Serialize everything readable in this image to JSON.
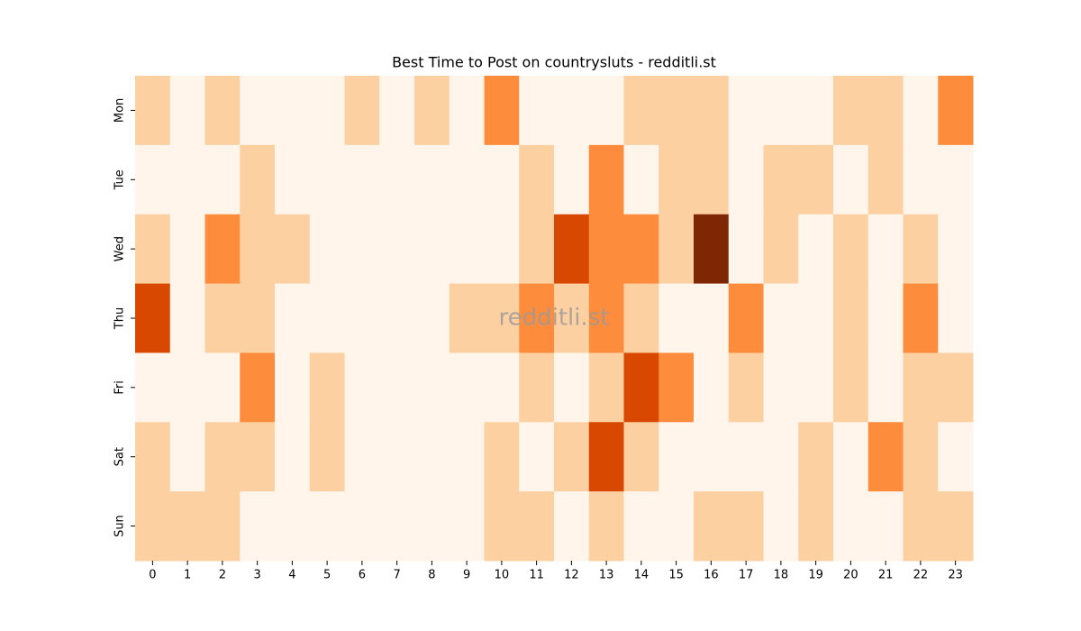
{
  "chart_data": {
    "type": "heatmap",
    "title": "Best Time to Post on countrysluts - redditli.st",
    "watermark": "redditli.st",
    "x": [
      0,
      1,
      2,
      3,
      4,
      5,
      6,
      7,
      8,
      9,
      10,
      11,
      12,
      13,
      14,
      15,
      16,
      17,
      18,
      19,
      20,
      21,
      22,
      23
    ],
    "y": [
      "Mon",
      "Tue",
      "Wed",
      "Thu",
      "Fri",
      "Sat",
      "Sun"
    ],
    "values": [
      [
        1,
        0,
        1,
        0,
        0,
        0,
        1,
        0,
        1,
        0,
        2,
        0,
        0,
        0,
        1,
        1,
        1,
        0,
        0,
        0,
        1,
        1,
        0,
        2
      ],
      [
        0,
        0,
        0,
        1,
        0,
        0,
        0,
        0,
        0,
        0,
        0,
        1,
        0,
        2,
        0,
        1,
        1,
        0,
        1,
        1,
        0,
        1,
        0,
        0
      ],
      [
        1,
        0,
        2,
        1,
        1,
        0,
        0,
        0,
        0,
        0,
        0,
        1,
        3,
        2,
        2,
        1,
        4,
        0,
        1,
        0,
        1,
        0,
        1,
        0
      ],
      [
        3,
        0,
        1,
        1,
        0,
        0,
        0,
        0,
        0,
        1,
        1,
        2,
        1,
        2,
        1,
        0,
        0,
        2,
        0,
        0,
        1,
        0,
        2,
        0
      ],
      [
        0,
        0,
        0,
        2,
        0,
        1,
        0,
        0,
        0,
        0,
        0,
        1,
        0,
        1,
        3,
        2,
        0,
        1,
        0,
        0,
        1,
        0,
        1,
        1
      ],
      [
        1,
        0,
        1,
        1,
        0,
        1,
        0,
        0,
        0,
        0,
        1,
        0,
        1,
        3,
        1,
        0,
        0,
        0,
        0,
        1,
        0,
        2,
        1,
        0
      ],
      [
        1,
        1,
        1,
        0,
        0,
        0,
        0,
        0,
        0,
        0,
        1,
        1,
        0,
        1,
        0,
        0,
        1,
        1,
        0,
        1,
        0,
        0,
        1,
        1
      ]
    ],
    "colorscale": [
      "#fff5eb",
      "#fdd0a2",
      "#fd8d3c",
      "#d94801",
      "#7f2704"
    ]
  }
}
